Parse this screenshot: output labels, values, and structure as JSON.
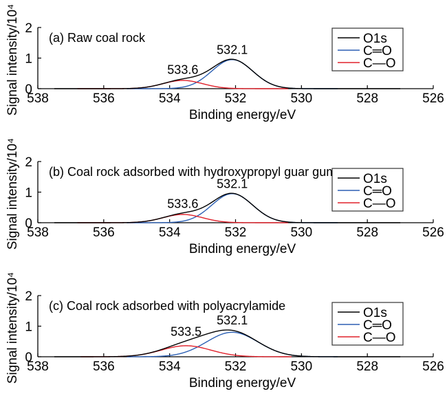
{
  "chart_data": [
    {
      "type": "line",
      "title": "(a) Raw coal rock",
      "xlabel": "Binding energy/eV",
      "ylabel": "Signal intensity/10⁴",
      "xlim": [
        538,
        526
      ],
      "ylim": [
        0,
        2
      ],
      "x_reversed": true,
      "xticks": [
        538,
        536,
        534,
        532,
        530,
        528,
        526
      ],
      "yticks": [
        0,
        1,
        2
      ],
      "grid": false,
      "legend": {
        "placement": "top-right",
        "entries": [
          "O1s",
          "C═O",
          "C—O"
        ]
      },
      "series": [
        {
          "name": "C═O",
          "color": "#2b5fb4",
          "shape": "gaussian",
          "center": 532.1,
          "height": 0.95,
          "sigma": 0.62
        },
        {
          "name": "C—O",
          "color": "#e0202a",
          "shape": "gaussian",
          "center": 533.6,
          "height": 0.27,
          "sigma": 0.6
        },
        {
          "name": "O1s",
          "color": "#000000",
          "shape": "sum"
        }
      ],
      "annotations": [
        {
          "text": "533.6",
          "x": 533.6,
          "y": 0.35
        },
        {
          "text": "532.1",
          "x": 532.1,
          "y": 1.0
        }
      ]
    },
    {
      "type": "line",
      "title": "(b) Coal rock adsorbed with hydroxypropyl guar gum",
      "xlabel": "Binding energy/eV",
      "ylabel": "Signal intensity/10⁴",
      "xlim": [
        538,
        526
      ],
      "ylim": [
        0,
        2
      ],
      "x_reversed": true,
      "xticks": [
        538,
        536,
        534,
        532,
        530,
        528,
        526
      ],
      "yticks": [
        0,
        1,
        2
      ],
      "grid": false,
      "legend": {
        "placement": "top-right",
        "entries": [
          "O1s",
          "C═O",
          "C—O"
        ]
      },
      "series": [
        {
          "name": "C═O",
          "color": "#2b5fb4",
          "shape": "gaussian",
          "center": 532.1,
          "height": 0.95,
          "sigma": 0.62
        },
        {
          "name": "C—O",
          "color": "#e0202a",
          "shape": "gaussian",
          "center": 533.6,
          "height": 0.27,
          "sigma": 0.6
        },
        {
          "name": "O1s",
          "color": "#000000",
          "shape": "sum"
        }
      ],
      "annotations": [
        {
          "text": "533.6",
          "x": 533.6,
          "y": 0.35
        },
        {
          "text": "532.1",
          "x": 532.1,
          "y": 1.0
        }
      ]
    },
    {
      "type": "line",
      "title": "(c) Coal rock adsorbed with polyacrylamide",
      "xlabel": "Binding energy/eV",
      "ylabel": "Signal intensity/10⁴",
      "xlim": [
        538,
        526
      ],
      "ylim": [
        0,
        2
      ],
      "x_reversed": true,
      "xticks": [
        538,
        536,
        534,
        532,
        530,
        528,
        526
      ],
      "yticks": [
        0,
        1,
        2
      ],
      "grid": false,
      "legend": {
        "placement": "top-right",
        "entries": [
          "O1s",
          "C═O",
          "C—O"
        ]
      },
      "series": [
        {
          "name": "C═O",
          "color": "#2b5fb4",
          "shape": "gaussian",
          "center": 532.1,
          "height": 0.8,
          "sigma": 0.78
        },
        {
          "name": "C—O",
          "color": "#e0202a",
          "shape": "gaussian",
          "center": 533.5,
          "height": 0.36,
          "sigma": 0.75
        },
        {
          "name": "O1s",
          "color": "#000000",
          "shape": "sum"
        }
      ],
      "annotations": [
        {
          "text": "533.5",
          "x": 533.5,
          "y": 0.55
        },
        {
          "text": "532.1",
          "x": 532.1,
          "y": 0.92
        }
      ]
    }
  ]
}
